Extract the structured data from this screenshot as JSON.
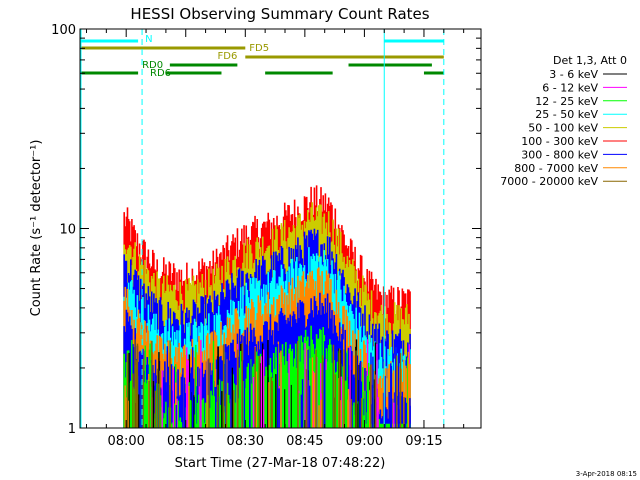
{
  "chart_data": {
    "type": "line",
    "title": "HESSI Observing Summary Count Rates",
    "xlabel": "Start Time (27-Mar-18 07:48:22)",
    "ylabel": "Count Rate (s⁻¹ detector⁻¹)",
    "y_scale": "log",
    "ylim": [
      1,
      100
    ],
    "xlim_minutes_after_start": [
      0,
      101
    ],
    "x_ticks": [
      "08:00",
      "08:15",
      "08:30",
      "08:45",
      "09:00",
      "09:15"
    ],
    "y_ticks": [
      "1",
      "10",
      "100"
    ],
    "grid": false,
    "legend_title": "Det 1,3, Att 0",
    "legend_position": "right",
    "series": [
      {
        "name": "3 - 6 keV",
        "color": "#000000"
      },
      {
        "name": "6 - 12 keV",
        "color": "#ff00ff"
      },
      {
        "name": "12 - 25 keV",
        "color": "#00ff00"
      },
      {
        "name": "25 - 50 keV",
        "color": "#00ffff"
      },
      {
        "name": "50 - 100 keV",
        "color": "#cccc00"
      },
      {
        "name": "100 - 300 keV",
        "color": "#ff0000"
      },
      {
        "name": "300 - 800 keV",
        "color": "#0000ff"
      },
      {
        "name": "800 - 7000 keV",
        "color": "#ff8800"
      },
      {
        "name": "7000 - 20000 keV",
        "color": "#886600"
      }
    ],
    "data_window": {
      "start": "07:59:30",
      "end": "09:11:30"
    },
    "max_envelope": [
      {
        "t": "07:59",
        "y": 13.5
      },
      {
        "t": "08:03",
        "y": 9.5
      },
      {
        "t": "08:08",
        "y": 7.0
      },
      {
        "t": "08:15",
        "y": 6.5
      },
      {
        "t": "08:22",
        "y": 7.5
      },
      {
        "t": "08:30",
        "y": 10.5
      },
      {
        "t": "08:37",
        "y": 12.0
      },
      {
        "t": "08:43",
        "y": 14.0
      },
      {
        "t": "08:47",
        "y": 16.0
      },
      {
        "t": "08:51",
        "y": 15.0
      },
      {
        "t": "08:56",
        "y": 9.0
      },
      {
        "t": "09:01",
        "y": 6.0
      },
      {
        "t": "09:05",
        "y": 5.0
      },
      {
        "t": "09:11",
        "y": 5.0
      }
    ],
    "mode_bars": [
      {
        "label": "N",
        "color": "#00ffff",
        "segments": [
          [
            "07:48",
            "08:03"
          ],
          [
            "09:05",
            "09:20"
          ]
        ]
      },
      {
        "label": "FD5",
        "color": "#999900",
        "segments": [
          [
            "07:48",
            "08:30"
          ]
        ]
      },
      {
        "label": "FD6",
        "color": "#999900",
        "segments": [
          [
            "08:30",
            "09:20"
          ]
        ]
      },
      {
        "label": "RD0",
        "color": "#008800",
        "segments": [
          [
            "08:11",
            "08:28"
          ],
          [
            "08:56",
            "09:17"
          ]
        ]
      },
      {
        "label": "RD6",
        "color": "#008800",
        "segments": [
          [
            "07:48",
            "08:03"
          ],
          [
            "08:10",
            "08:24"
          ],
          [
            "08:35",
            "08:52"
          ],
          [
            "09:15",
            "09:20"
          ]
        ]
      }
    ],
    "vertical_markers": [
      {
        "time": "08:04",
        "color": "#00ffff",
        "style": "dashed"
      },
      {
        "time": "09:05",
        "color": "#00ffff",
        "style": "solid"
      },
      {
        "time": "09:20",
        "color": "#00ffff",
        "style": "dashed"
      }
    ]
  },
  "footer": {
    "timestamp": "3-Apr-2018 08:15"
  }
}
